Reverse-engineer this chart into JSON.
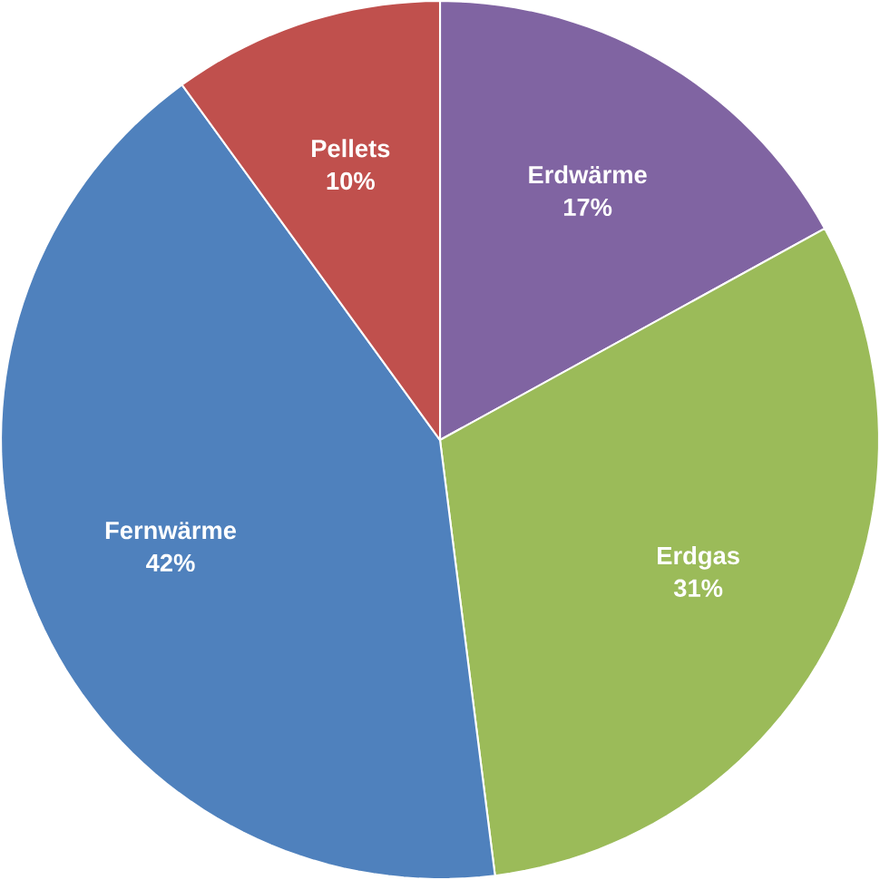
{
  "chart_data": {
    "type": "pie",
    "categories": [
      "Erdwärme",
      "Erdgas",
      "Fernwärme",
      "Pellets"
    ],
    "values": [
      17,
      31,
      42,
      10
    ],
    "value_labels": [
      "17%",
      "31%",
      "42%",
      "10%"
    ],
    "colors": [
      "#8064a2",
      "#9bbb59",
      "#4f81bd",
      "#c0504d"
    ]
  }
}
